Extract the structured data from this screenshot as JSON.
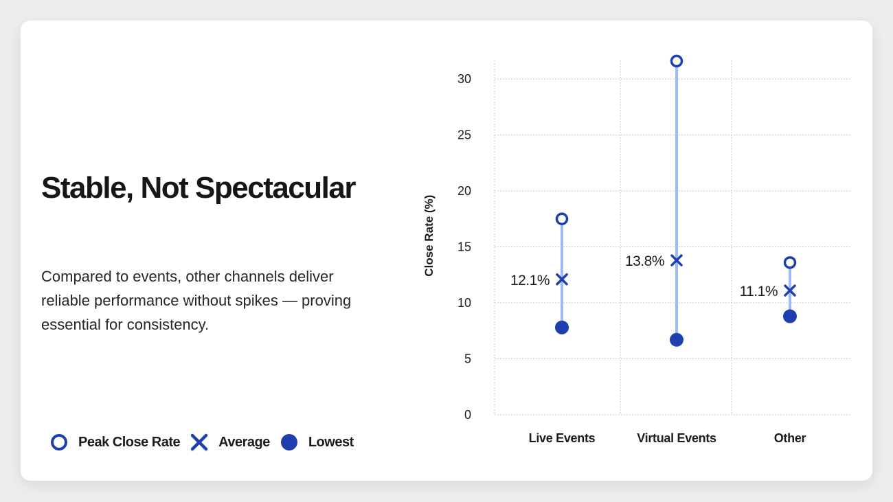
{
  "heading": {
    "title": "Stable, Not Spectacular",
    "description": "Compared to events, other channels deliver reliable performance without spikes — proving essential for consistency."
  },
  "legend": {
    "peak": "Peak Close Rate",
    "average": "Average",
    "lowest": "Lowest"
  },
  "colors": {
    "marker": "#1e3fae",
    "range_line": "#9dbcf3",
    "grid": "#c8c8c8"
  },
  "chart_data": {
    "type": "dot-range",
    "categories": [
      "Live Events",
      "Virtual Events",
      "Other"
    ],
    "series": [
      {
        "name": "Peak Close Rate",
        "values": [
          17.5,
          31.6,
          13.6
        ]
      },
      {
        "name": "Average",
        "values": [
          12.1,
          13.8,
          11.1
        ]
      },
      {
        "name": "Lowest",
        "values": [
          7.8,
          6.7,
          8.8
        ]
      }
    ],
    "average_labels": [
      "12.1%",
      "13.8%",
      "11.1%"
    ],
    "ylabel": "Close Rate (%)",
    "xlabel": "",
    "ylim": [
      0,
      32
    ],
    "yticks": [
      0,
      5,
      10,
      15,
      20,
      25,
      30
    ],
    "grid": true
  }
}
